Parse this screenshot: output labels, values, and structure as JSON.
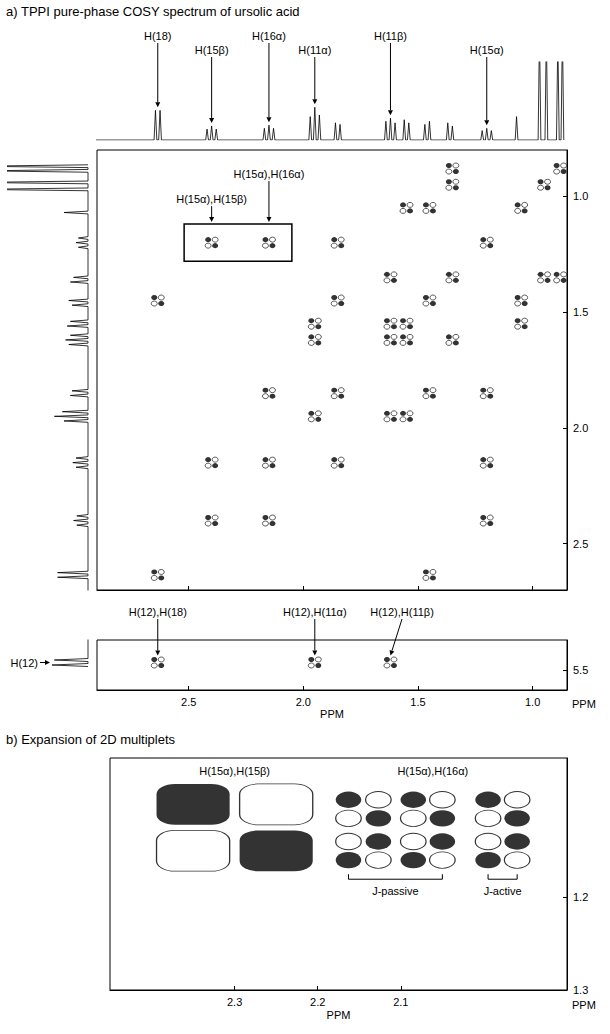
{
  "chart_data": [
    {
      "type": "cosy",
      "title": "a) TPPI pure-phase COSY spectrum of ursolic acid",
      "xlabel": "PPM",
      "ylabel": "PPM",
      "xlim": [
        2.9,
        0.85
      ],
      "xticks": [
        2.5,
        {
          "value": 2,
          "label": "2.0"
        },
        1.5,
        {
          "value": 1,
          "label": "1.0"
        }
      ],
      "ylim": [
        2.7,
        0.8
      ],
      "yticks": [
        {
          "value": 1,
          "label": "1.0"
        },
        1.5,
        {
          "value": 2,
          "label": "2.0"
        },
        2.5
      ],
      "projection": {
        "ppm": [
          5.48,
          5.46,
          2.645,
          2.625,
          2.42,
          2.4,
          2.38,
          2.17,
          2.15,
          2.13,
          1.97,
          1.95,
          1.93,
          1.86,
          1.84,
          1.64,
          1.62,
          1.6,
          1.56,
          1.54,
          1.47,
          1.45,
          1.37,
          1.35,
          1.22,
          1.2,
          1.18,
          1.07,
          0.97,
          0.94,
          0.89,
          0.87
        ],
        "intensity": [
          45,
          42,
          38,
          38,
          14,
          18,
          14,
          15,
          19,
          15,
          30,
          42,
          32,
          22,
          20,
          24,
          28,
          22,
          26,
          22,
          20,
          24,
          22,
          18,
          12,
          15,
          12,
          30,
          140,
          140,
          130,
          140
        ],
        "lim": [
          0,
          100
        ]
      },
      "peak_labels": [
        {
          "text": "H(18)",
          "ppm": 2.635
        },
        {
          "text": "H(15β)",
          "ppm": 2.4
        },
        {
          "text": "H(16α)",
          "ppm": 2.15
        },
        {
          "text": "H(11α)",
          "ppm": 1.95
        },
        {
          "text": "H(11β)",
          "ppm": 1.62
        },
        {
          "text": "H(15α)",
          "ppm": 1.2
        }
      ],
      "diagonal": [
        2.635,
        2.4,
        2.15,
        1.95,
        1.85,
        1.62,
        1.55,
        1.45,
        1.35,
        1.2,
        1.05,
        0.95,
        0.88
      ],
      "cross_peaks": {
        "x": [
          2.635,
          2.4,
          2.15,
          2.4,
          2.15,
          1.85,
          1.95,
          1.95,
          1.62,
          1.55,
          1.45,
          1.35,
          1.35,
          1.62,
          1.85,
          1.45,
          1.2,
          1.2,
          2.15,
          1.85,
          1.2,
          1.62,
          1.55,
          1.55,
          1.05,
          1.05,
          0.95,
          0.88,
          1.35,
          1.45
        ],
        "y": [
          1.45,
          1.2,
          1.2,
          2.15,
          1.85,
          1.2,
          1.62,
          1.55,
          1.55,
          1.05,
          1.05,
          0.95,
          0.88,
          1.35,
          1.45,
          2.635,
          2.4,
          2.15,
          2.4,
          2.15,
          1.85,
          1.95,
          1.95,
          1.62,
          1.55,
          1.45,
          1.35,
          1.35,
          1.62,
          1.85
        ]
      },
      "box": {
        "x": [
          2.52,
          2.05
        ],
        "y": [
          1.12,
          1.28
        ]
      },
      "box_labels": [
        {
          "text": "H(15α),H(15β)",
          "x": 2.4
        },
        {
          "text": "H(15α),H(16α)",
          "x": 2.15
        }
      ],
      "strip": {
        "label": "H(12)",
        "ppm": 5.47,
        "ylim": [
          5.58,
          5.38
        ],
        "yticks": [
          5.5
        ],
        "cross_peaks": [
          {
            "x": 2.635,
            "y": 5.47,
            "label": "H(12),H(18)"
          },
          {
            "x": 1.95,
            "y": 5.47,
            "label": "H(12),H(11α)"
          },
          {
            "x": 1.62,
            "y": 5.47,
            "label": "H(12),H(11β)"
          }
        ]
      }
    },
    {
      "type": "cosy_expansion",
      "title": "b) Expansion of 2D multiplets",
      "xlabel": "PPM",
      "ylabel": "PPM",
      "xlim": [
        2.45,
        1.9
      ],
      "xticks": [
        2.3,
        2.2,
        2.1
      ],
      "ylim": [
        1.3,
        1.05
      ],
      "yticks": [
        1.2,
        1.3
      ],
      "multiplets": [
        {
          "name": "H(15α),H(15β)",
          "x": [
            2.35,
            2.25,
            2.35,
            2.25
          ],
          "y": [
            1.1,
            1.1,
            1.15,
            1.15
          ],
          "phase": [
            1,
            -1,
            -1,
            1
          ]
        },
        {
          "name": "H(15α),H(16α)",
          "x": [
            2.163,
            2.127,
            2.085,
            2.05,
            1.995,
            1.96,
            2.163,
            2.127,
            2.085,
            2.05,
            1.995,
            1.96,
            2.163,
            2.127,
            2.085,
            2.05,
            1.995,
            1.96,
            2.163,
            2.127,
            2.085,
            2.05,
            1.995,
            1.96
          ],
          "y": [
            1.095,
            1.095,
            1.095,
            1.095,
            1.095,
            1.095,
            1.115,
            1.115,
            1.115,
            1.115,
            1.115,
            1.115,
            1.14,
            1.14,
            1.14,
            1.14,
            1.14,
            1.14,
            1.16,
            1.16,
            1.16,
            1.16,
            1.16,
            1.16
          ],
          "phase": [
            1,
            -1,
            1,
            -1,
            1,
            -1,
            -1,
            1,
            -1,
            1,
            -1,
            1,
            -1,
            1,
            -1,
            1,
            -1,
            1,
            1,
            -1,
            1,
            -1,
            1,
            -1
          ]
        }
      ],
      "brackets": [
        {
          "text": "J-passive",
          "x": [
            2.163,
            2.05
          ]
        },
        {
          "text": "J-active",
          "x": [
            1.995,
            1.96
          ]
        }
      ]
    }
  ]
}
